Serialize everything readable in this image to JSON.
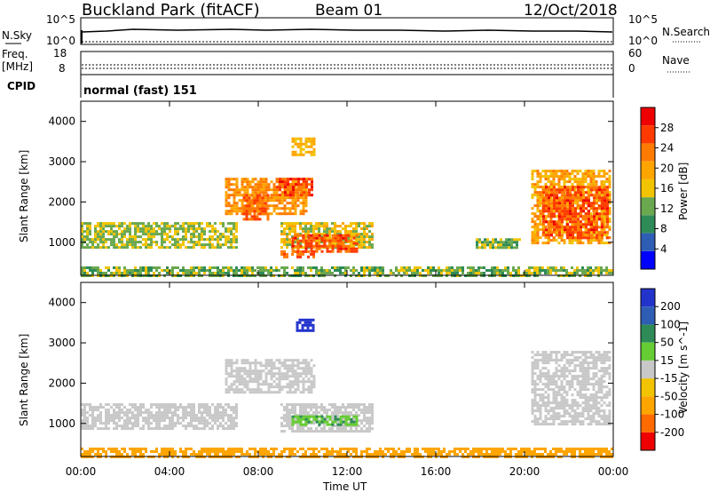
{
  "header": {
    "site": "Buckland Park (fitACF)",
    "beam": "Beam 01",
    "date": "12/Oct/2018"
  },
  "sky_panel": {
    "left_label": "N.Sky",
    "right_label": "N.Search",
    "ticks_left": [
      "10^5",
      "10^0"
    ],
    "ticks_right": [
      "10^5",
      "10^0"
    ]
  },
  "freq_panel": {
    "left_label_line1": "Freq.",
    "left_label_line2": "[MHz]",
    "right_label": "Nave",
    "ticks_left": [
      "18",
      "8"
    ],
    "ticks_right": [
      "60",
      "0"
    ]
  },
  "cpid_panel": {
    "label": "CPID",
    "text": "normal (fast) 151"
  },
  "power_panel": {
    "ylabel": "Slant Range [km]",
    "yticks": [
      "4000",
      "3000",
      "2000",
      "1000"
    ],
    "colorbar_label": "Power [dB]",
    "colorbar_ticks": [
      "28",
      "24",
      "20",
      "16",
      "12",
      "8",
      "4"
    ],
    "colors": [
      "#0000ff",
      "#2e5db5",
      "#2e8b57",
      "#6aa84f",
      "#f2c300",
      "#ffa500",
      "#ff7a00",
      "#ff3a00",
      "#ee0000"
    ]
  },
  "velocity_panel": {
    "ylabel": "Slant Range [km]",
    "yticks": [
      "4000",
      "3000",
      "2000",
      "1000"
    ],
    "colorbar_label": "Velocity [m s^-1]",
    "colorbar_ticks": [
      "200",
      "100",
      "50",
      "15",
      "-15",
      "-50",
      "-100",
      "-200"
    ],
    "colors": [
      "#2233cc",
      "#2e5db5",
      "#2e8b57",
      "#66cc33",
      "#c8c8c8",
      "#f2c300",
      "#ffa500",
      "#ff6a00",
      "#ee0000"
    ]
  },
  "xaxis": {
    "ticks": [
      "00:00",
      "04:00",
      "08:00",
      "12:00",
      "16:00",
      "20:00",
      "00:00"
    ],
    "label": "Time UT"
  },
  "chart_data": {
    "type": "heatmap",
    "x_range_hours": [
      0,
      24
    ],
    "y_range_km": [
      180,
      4500
    ],
    "power_regions": [
      {
        "t0": 0.0,
        "t1": 7.0,
        "r0": 900,
        "r1": 1500,
        "value_db": 14
      },
      {
        "t0": 6.5,
        "t1": 10.2,
        "r0": 1700,
        "r1": 2600,
        "value_db": 22
      },
      {
        "t0": 7.3,
        "t1": 8.4,
        "r0": 1600,
        "r1": 2200,
        "value_db": 26
      },
      {
        "t0": 8.8,
        "t1": 10.4,
        "r0": 2200,
        "r1": 2600,
        "value_db": 27
      },
      {
        "t0": 9.5,
        "t1": 10.5,
        "r0": 3200,
        "r1": 3600,
        "value_db": 18
      },
      {
        "t0": 9.0,
        "t1": 13.2,
        "r0": 900,
        "r1": 1500,
        "value_db": 16
      },
      {
        "t0": 9.5,
        "t1": 12.5,
        "r0": 800,
        "r1": 1200,
        "value_db": 27
      },
      {
        "t0": 9.0,
        "t1": 10.5,
        "r0": 650,
        "r1": 800,
        "value_db": 26
      },
      {
        "t0": 17.8,
        "t1": 19.8,
        "r0": 900,
        "r1": 1100,
        "value_db": 12
      },
      {
        "t0": 20.3,
        "t1": 23.9,
        "r0": 1000,
        "r1": 2800,
        "value_db": 20
      },
      {
        "t0": 20.8,
        "t1": 23.8,
        "r0": 1100,
        "r1": 2400,
        "value_db": 27
      },
      {
        "t0": 0.0,
        "t1": 24.0,
        "r0": 200,
        "r1": 400,
        "value_db": 12
      }
    ],
    "velocity_regions": [
      {
        "t0": 0.0,
        "t1": 7.0,
        "r0": 900,
        "r1": 1500,
        "value_ms": 0
      },
      {
        "t0": 6.5,
        "t1": 10.5,
        "r0": 1800,
        "r1": 2600,
        "value_ms": 0
      },
      {
        "t0": 9.7,
        "t1": 10.5,
        "r0": 3300,
        "r1": 3600,
        "value_ms": 200
      },
      {
        "t0": 9.0,
        "t1": 13.2,
        "r0": 800,
        "r1": 1500,
        "value_ms": 0
      },
      {
        "t0": 9.5,
        "t1": 12.5,
        "r0": 1000,
        "r1": 1200,
        "value_ms": 30
      },
      {
        "t0": 20.3,
        "t1": 23.9,
        "r0": 1000,
        "r1": 2800,
        "value_ms": 0
      },
      {
        "t0": 0.0,
        "t1": 24.0,
        "r0": 200,
        "r1": 400,
        "value_ms": -50
      }
    ]
  }
}
